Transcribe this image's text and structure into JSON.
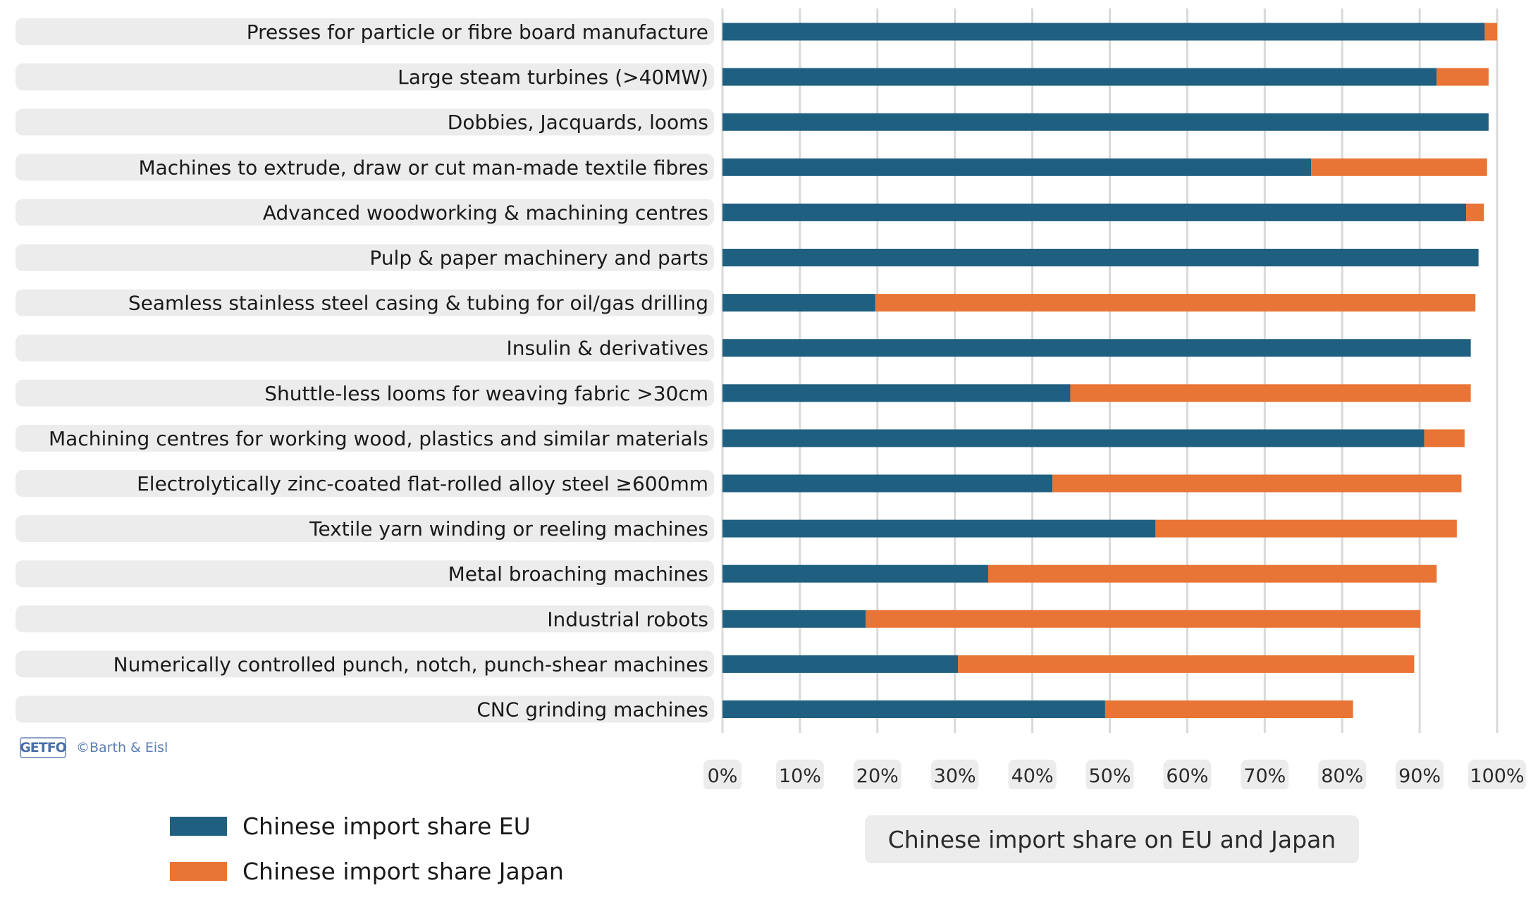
{
  "chart_data": {
    "type": "bar",
    "stacked": true,
    "orientation": "horizontal",
    "categories": [
      "Presses for particle or fibre board manufacture",
      "Large steam turbines (>40MW)",
      "Dobbies, Jacquards, looms",
      "Machines to extrude, draw or cut man-made textile fibres",
      "Advanced woodworking & machining centres",
      "Pulp & paper machinery and parts",
      "Seamless stainless steel casing & tubing for oil/gas drilling",
      "Insulin & derivatives",
      "Shuttle-less looms for weaving fabric >30cm",
      "Machining centres for working wood, plastics and similar materials",
      "Electrolytically zinc-coated flat-rolled alloy steel ≥600mm",
      "Textile yarn winding or reeling machines",
      "Metal broaching machines",
      "Industrial robots",
      "Numerically controlled punch, notch, punch-shear machines",
      "CNC grinding machines"
    ],
    "series": [
      {
        "name": "Chinese import share EU",
        "color": "#1f5f80",
        "values": [
          98.4,
          92.2,
          98.9,
          76.0,
          96.0,
          97.6,
          19.7,
          96.6,
          44.9,
          90.6,
          42.6,
          55.9,
          34.3,
          18.5,
          30.4,
          49.4
        ]
      },
      {
        "name": "Chinese import share Japan",
        "color": "#e87435",
        "values": [
          1.6,
          6.7,
          0.0,
          22.7,
          2.3,
          0.0,
          77.5,
          0.0,
          51.7,
          5.2,
          52.8,
          38.9,
          57.9,
          71.6,
          58.9,
          32.0
        ]
      }
    ],
    "xlim": [
      0,
      100
    ],
    "xticks": [
      "0%",
      "10%",
      "20%",
      "30%",
      "40%",
      "50%",
      "60%",
      "70%",
      "80%",
      "90%",
      "100%"
    ],
    "xlabel": "Chinese import share on EU and Japan",
    "grid": true,
    "legend_position": "bottom-left",
    "credit": "©Barth & Eisl",
    "logo_text": "GETFO"
  }
}
